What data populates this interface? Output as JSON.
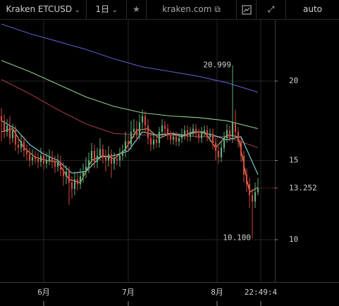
{
  "toolbar": {
    "symbol": "Kraken ETCUSD",
    "interval": "1日",
    "source": "kraken.com",
    "scale_mode": "auto"
  },
  "chart_data": {
    "type": "candlestick",
    "up_color": "#5fae7c",
    "down_color": "#d2473f",
    "x": [
      0,
      1,
      2,
      3,
      4,
      5,
      6,
      7,
      8,
      9,
      10,
      11,
      12,
      13,
      14,
      15,
      16,
      17,
      18,
      19,
      20,
      21,
      22,
      23,
      24,
      25,
      26,
      27,
      28,
      29,
      30,
      31,
      32,
      33,
      34,
      35,
      36,
      37,
      38,
      39,
      40,
      41,
      42,
      43,
      44,
      45,
      46,
      47,
      48,
      49,
      50,
      51,
      52,
      53,
      54,
      55,
      56,
      57,
      58,
      59,
      60,
      61,
      62,
      63,
      64,
      65,
      66,
      67,
      68,
      69,
      70,
      71,
      72,
      73,
      74,
      75,
      76,
      77,
      78,
      79,
      80,
      81,
      82,
      83,
      84,
      85,
      86,
      87,
      88,
      89,
      90,
      91
    ],
    "open": [
      17.8,
      17.5,
      16.8,
      17.2,
      16.4,
      16.9,
      16.0,
      15.8,
      16.2,
      15.6,
      15.4,
      15.0,
      15.2,
      15.1,
      14.9,
      15.3,
      14.8,
      15.0,
      15.2,
      14.9,
      14.6,
      14.9,
      14.4,
      14.0,
      14.3,
      13.6,
      13.2,
      13.8,
      13.5,
      14.0,
      14.3,
      14.6,
      15.0,
      15.6,
      14.9,
      15.3,
      15.7,
      15.2,
      15.0,
      15.4,
      14.8,
      15.1,
      15.0,
      15.3,
      15.6,
      16.2,
      16.0,
      16.8,
      17.0,
      16.6,
      17.4,
      17.8,
      17.2,
      16.4,
      16.0,
      16.3,
      16.1,
      16.8,
      17.2,
      17.0,
      16.6,
      16.3,
      16.5,
      16.2,
      16.4,
      16.6,
      16.9,
      16.5,
      16.8,
      17.0,
      16.7,
      16.4,
      16.8,
      16.9,
      16.5,
      16.7,
      16.1,
      15.6,
      15.2,
      15.8,
      16.4,
      16.9,
      16.5,
      17.4,
      16.8,
      16.2,
      15.3,
      14.1,
      13.5,
      12.8,
      12.4,
      13.0
    ],
    "high": [
      18.3,
      17.9,
      17.6,
      17.8,
      17.3,
      17.2,
      16.5,
      16.6,
      16.5,
      16.0,
      15.8,
      15.7,
      15.6,
      15.5,
      15.8,
      15.6,
      15.5,
      15.7,
      15.6,
      15.3,
      15.4,
      15.3,
      14.9,
      14.7,
      14.6,
      14.0,
      14.3,
      14.2,
      14.5,
      14.8,
      15.2,
      15.5,
      16.1,
      16.0,
      15.8,
      16.4,
      16.0,
      15.7,
      15.9,
      15.7,
      15.5,
      15.4,
      15.8,
      16.0,
      16.8,
      16.6,
      17.5,
      17.6,
      17.5,
      17.9,
      18.2,
      18.1,
      17.6,
      16.8,
      16.7,
      16.6,
      17.1,
      17.6,
      17.5,
      17.3,
      16.9,
      16.8,
      16.8,
      16.7,
      17.0,
      17.2,
      17.2,
      17.1,
      17.3,
      17.3,
      17.0,
      17.1,
      17.2,
      17.2,
      17.0,
      17.0,
      16.4,
      15.9,
      16.2,
      16.8,
      17.3,
      17.2,
      20.999,
      18.2,
      17.1,
      16.5,
      15.6,
      14.5,
      13.9,
      13.2,
      13.6,
      13.9
    ],
    "low": [
      16.2,
      16.4,
      16.5,
      16.0,
      16.1,
      15.6,
      15.4,
      15.5,
      15.2,
      15.0,
      14.6,
      14.7,
      14.8,
      14.5,
      14.6,
      14.4,
      14.5,
      14.7,
      14.5,
      14.2,
      14.3,
      14.0,
      13.4,
      13.5,
      12.2,
      12.6,
      12.8,
      13.1,
      13.2,
      13.6,
      13.9,
      14.2,
      14.6,
      14.5,
      14.5,
      15.0,
      14.8,
      14.3,
      14.6,
      13.9,
      14.4,
      14.7,
      14.6,
      15.0,
      15.2,
      15.6,
      15.7,
      16.4,
      16.2,
      16.3,
      17.0,
      16.8,
      16.0,
      15.6,
      15.7,
      15.8,
      15.8,
      16.5,
      16.7,
      16.3,
      16.0,
      16.0,
      15.9,
      15.9,
      16.1,
      16.3,
      16.2,
      16.2,
      16.5,
      16.4,
      16.1,
      16.1,
      16.5,
      16.2,
      16.2,
      15.7,
      15.0,
      14.8,
      14.9,
      15.5,
      16.1,
      16.2,
      16.1,
      16.4,
      15.8,
      14.9,
      13.6,
      13.0,
      12.0,
      10.1,
      12.0,
      12.8
    ],
    "close": [
      17.5,
      16.8,
      17.2,
      16.4,
      16.9,
      16.0,
      15.8,
      16.2,
      15.6,
      15.4,
      15.0,
      15.2,
      15.1,
      14.9,
      15.3,
      14.8,
      15.0,
      15.2,
      14.9,
      14.6,
      14.9,
      14.4,
      14.0,
      14.3,
      13.6,
      13.2,
      13.8,
      13.5,
      14.0,
      14.3,
      14.6,
      15.0,
      15.6,
      14.9,
      15.3,
      15.7,
      15.2,
      15.0,
      15.4,
      14.8,
      15.1,
      15.0,
      15.3,
      15.6,
      16.2,
      16.0,
      16.8,
      17.0,
      16.6,
      17.4,
      17.8,
      17.2,
      16.4,
      16.0,
      16.3,
      16.1,
      16.8,
      17.2,
      17.0,
      16.6,
      16.3,
      16.5,
      16.2,
      16.4,
      16.6,
      16.9,
      16.5,
      16.8,
      17.0,
      16.7,
      16.4,
      16.8,
      16.9,
      16.5,
      16.7,
      16.1,
      15.6,
      15.2,
      15.8,
      16.4,
      16.9,
      16.5,
      17.4,
      16.8,
      16.2,
      15.3,
      14.1,
      13.5,
      12.8,
      12.4,
      13.0,
      13.252
    ],
    "lines": [
      {
        "color": "#5b5bc2",
        "x": [
          0,
          10,
          20,
          30,
          40,
          50,
          60,
          70,
          80,
          91
        ],
        "values": [
          23.6,
          23.0,
          22.5,
          22.0,
          21.4,
          20.9,
          20.6,
          20.3,
          19.9,
          19.3
        ]
      },
      {
        "color": "#8fcf8f",
        "x": [
          0,
          10,
          20,
          30,
          40,
          50,
          60,
          70,
          80,
          91
        ],
        "values": [
          21.3,
          20.6,
          19.8,
          19.0,
          18.4,
          18.0,
          17.8,
          17.7,
          17.5,
          17.0
        ]
      },
      {
        "color": "#9a3645",
        "x": [
          0,
          10,
          20,
          30,
          40,
          50,
          60,
          70,
          80,
          91
        ],
        "values": [
          20.1,
          19.2,
          18.2,
          17.3,
          16.7,
          16.6,
          16.6,
          16.5,
          16.5,
          15.8
        ]
      },
      {
        "color": "#7fdfe8",
        "x": [
          0,
          5,
          10,
          15,
          20,
          25,
          30,
          35,
          40,
          45,
          50,
          55,
          60,
          65,
          70,
          75,
          80,
          85,
          91
        ],
        "values": [
          17.5,
          17.0,
          16.0,
          15.4,
          15.0,
          14.2,
          14.3,
          15.2,
          15.3,
          15.6,
          16.8,
          16.6,
          16.7,
          16.6,
          16.8,
          16.6,
          16.3,
          16.5,
          14.1
        ]
      },
      {
        "color": "#f0a060",
        "x": [
          0,
          4,
          8,
          12,
          16,
          20,
          24,
          28,
          32,
          36,
          40,
          44,
          48,
          52,
          56,
          60,
          64,
          68,
          72,
          76,
          80,
          84,
          88,
          91
        ],
        "values": [
          16.8,
          17.0,
          15.8,
          15.2,
          15.0,
          14.9,
          13.8,
          13.6,
          15.0,
          15.3,
          15.1,
          15.7,
          16.9,
          17.0,
          16.4,
          16.7,
          16.5,
          16.8,
          16.8,
          15.8,
          16.6,
          16.5,
          13.0,
          13.3
        ]
      }
    ],
    "annotations": [
      {
        "text": "20.999",
        "x": 82,
        "y": 20.999
      },
      {
        "text": "10.100",
        "x": 89,
        "y": 10.1
      }
    ],
    "last_price": {
      "text": "13.252",
      "value": 13.252,
      "color": "#d2473f"
    },
    "xlim": [
      -0.5,
      97
    ],
    "ylim": [
      7.33,
      23.87
    ],
    "xticks": [
      {
        "value": 15,
        "label": "6月"
      },
      {
        "value": 45,
        "label": "7月"
      },
      {
        "value": 76.5,
        "label": "8月"
      },
      {
        "value": 92,
        "label": "22:49:4"
      }
    ],
    "yticks": [
      10,
      15,
      20
    ],
    "grid": true
  }
}
